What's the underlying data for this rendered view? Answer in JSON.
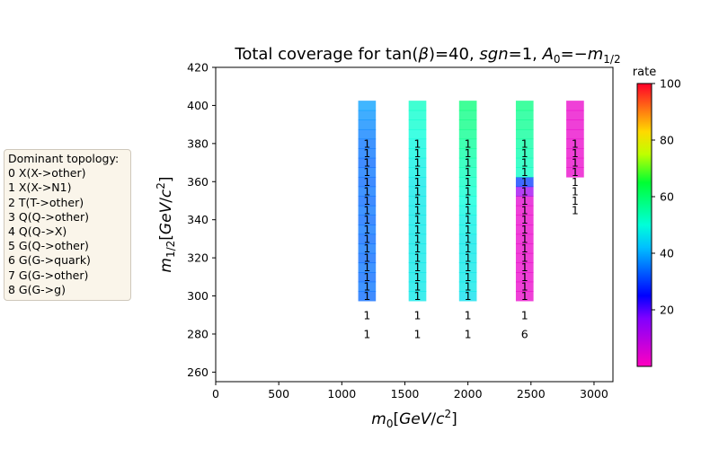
{
  "chart_data": {
    "type": "heatmap",
    "title": "Total coverage for tan(β)=40, sgn=1, A₀=−m₁/₂",
    "xlabel": "m₀[GeV/c²]",
    "ylabel": "m₁/₂[GeV/c²]",
    "xlim": [
      0,
      3150
    ],
    "ylim": [
      255,
      420
    ],
    "x_ticks": [
      0,
      500,
      1000,
      1500,
      2000,
      2500,
      3000
    ],
    "y_ticks": [
      260,
      280,
      300,
      320,
      340,
      360,
      380,
      400,
      420
    ],
    "grid": false,
    "colorbar": {
      "label": "rate",
      "range": [
        0,
        100
      ],
      "ticks": [
        20,
        40,
        60,
        80,
        100
      ],
      "colormap": "gist_rainbow_r"
    },
    "cell_width": 140,
    "cell_height": 5,
    "columns": [
      {
        "x": 1200,
        "cells": [
          {
            "y": 300,
            "rate": 34
          },
          {
            "y": 305,
            "rate": 35
          },
          {
            "y": 310,
            "rate": 34
          },
          {
            "y": 315,
            "rate": 35
          },
          {
            "y": 320,
            "rate": 34
          },
          {
            "y": 325,
            "rate": 35
          },
          {
            "y": 330,
            "rate": 34
          },
          {
            "y": 335,
            "rate": 35
          },
          {
            "y": 340,
            "rate": 34
          },
          {
            "y": 345,
            "rate": 35
          },
          {
            "y": 350,
            "rate": 34
          },
          {
            "y": 355,
            "rate": 35
          },
          {
            "y": 360,
            "rate": 34
          },
          {
            "y": 365,
            "rate": 35
          },
          {
            "y": 370,
            "rate": 34
          },
          {
            "y": 375,
            "rate": 35
          },
          {
            "y": 380,
            "rate": 35
          },
          {
            "y": 385,
            "rate": 36
          },
          {
            "y": 390,
            "rate": 37
          },
          {
            "y": 395,
            "rate": 38
          },
          {
            "y": 400,
            "rate": 39
          }
        ]
      },
      {
        "x": 1600,
        "cells": [
          {
            "y": 300,
            "rate": 47
          },
          {
            "y": 305,
            "rate": 47
          },
          {
            "y": 310,
            "rate": 47
          },
          {
            "y": 315,
            "rate": 47
          },
          {
            "y": 320,
            "rate": 47
          },
          {
            "y": 325,
            "rate": 47
          },
          {
            "y": 330,
            "rate": 47
          },
          {
            "y": 335,
            "rate": 47
          },
          {
            "y": 340,
            "rate": 47
          },
          {
            "y": 345,
            "rate": 47
          },
          {
            "y": 350,
            "rate": 47
          },
          {
            "y": 355,
            "rate": 47
          },
          {
            "y": 360,
            "rate": 47
          },
          {
            "y": 365,
            "rate": 48
          },
          {
            "y": 370,
            "rate": 48
          },
          {
            "y": 375,
            "rate": 49
          },
          {
            "y": 380,
            "rate": 49
          },
          {
            "y": 385,
            "rate": 50
          },
          {
            "y": 390,
            "rate": 51
          },
          {
            "y": 395,
            "rate": 51
          },
          {
            "y": 400,
            "rate": 52
          }
        ]
      },
      {
        "x": 2000,
        "cells": [
          {
            "y": 300,
            "rate": 46
          },
          {
            "y": 305,
            "rate": 47
          },
          {
            "y": 310,
            "rate": 47
          },
          {
            "y": 315,
            "rate": 47
          },
          {
            "y": 320,
            "rate": 47
          },
          {
            "y": 325,
            "rate": 47
          },
          {
            "y": 330,
            "rate": 47
          },
          {
            "y": 335,
            "rate": 48
          },
          {
            "y": 340,
            "rate": 48
          },
          {
            "y": 345,
            "rate": 49
          },
          {
            "y": 350,
            "rate": 50
          },
          {
            "y": 355,
            "rate": 51
          },
          {
            "y": 360,
            "rate": 52
          },
          {
            "y": 365,
            "rate": 53
          },
          {
            "y": 370,
            "rate": 54
          },
          {
            "y": 375,
            "rate": 55
          },
          {
            "y": 380,
            "rate": 56
          },
          {
            "y": 385,
            "rate": 57
          },
          {
            "y": 390,
            "rate": 58
          },
          {
            "y": 395,
            "rate": 58
          },
          {
            "y": 400,
            "rate": 59
          }
        ]
      },
      {
        "x": 2450,
        "cells": [
          {
            "y": 300,
            "rate": 3
          },
          {
            "y": 305,
            "rate": 3
          },
          {
            "y": 310,
            "rate": 3
          },
          {
            "y": 315,
            "rate": 3
          },
          {
            "y": 320,
            "rate": 3
          },
          {
            "y": 325,
            "rate": 3
          },
          {
            "y": 330,
            "rate": 3
          },
          {
            "y": 335,
            "rate": 3
          },
          {
            "y": 340,
            "rate": 3
          },
          {
            "y": 345,
            "rate": 3
          },
          {
            "y": 350,
            "rate": 4
          },
          {
            "y": 355,
            "rate": 13
          },
          {
            "y": 360,
            "rate": 30
          },
          {
            "y": 365,
            "rate": 52
          },
          {
            "y": 370,
            "rate": 53
          },
          {
            "y": 375,
            "rate": 54
          },
          {
            "y": 380,
            "rate": 55
          },
          {
            "y": 385,
            "rate": 56
          },
          {
            "y": 390,
            "rate": 57
          },
          {
            "y": 395,
            "rate": 57
          },
          {
            "y": 400,
            "rate": 58
          }
        ]
      },
      {
        "x": 2850,
        "cells": [
          {
            "y": 365,
            "rate": 3
          },
          {
            "y": 370,
            "rate": 3
          },
          {
            "y": 375,
            "rate": 3
          },
          {
            "y": 380,
            "rate": 3
          },
          {
            "y": 385,
            "rate": 3
          },
          {
            "y": 390,
            "rate": 3
          },
          {
            "y": 395,
            "rate": 3
          },
          {
            "y": 400,
            "rate": 3
          }
        ]
      }
    ],
    "labels": [
      {
        "x": 1200,
        "ys": [
          280,
          290,
          300,
          305,
          310,
          315,
          320,
          325,
          330,
          335,
          340,
          345,
          350,
          355,
          360,
          365,
          370,
          375,
          380
        ],
        "texts": [
          "1",
          "1",
          "1",
          "1",
          "1",
          "1",
          "1",
          "1",
          "1",
          "1",
          "1",
          "1",
          "1",
          "1",
          "1",
          "1",
          "1",
          "1",
          "1"
        ]
      },
      {
        "x": 1600,
        "ys": [
          280,
          290,
          300,
          305,
          310,
          315,
          320,
          325,
          330,
          335,
          340,
          345,
          350,
          355,
          360,
          365,
          370,
          375,
          380
        ],
        "texts": [
          "1",
          "1",
          "1",
          "1",
          "1",
          "1",
          "1",
          "1",
          "1",
          "1",
          "1",
          "1",
          "1",
          "1",
          "1",
          "1",
          "1",
          "1",
          "1"
        ]
      },
      {
        "x": 2000,
        "ys": [
          280,
          290,
          300,
          305,
          310,
          315,
          320,
          325,
          330,
          335,
          340,
          345,
          350,
          355,
          360,
          365,
          370,
          375,
          380
        ],
        "texts": [
          "1",
          "1",
          "1",
          "1",
          "1",
          "1",
          "1",
          "1",
          "1",
          "1",
          "1",
          "1",
          "1",
          "1",
          "1",
          "1",
          "1",
          "1",
          "1"
        ]
      },
      {
        "x": 2450,
        "ys": [
          280,
          290,
          300,
          305,
          310,
          315,
          320,
          325,
          330,
          335,
          340,
          345,
          350,
          355,
          360,
          365,
          370,
          375,
          380
        ],
        "texts": [
          "6",
          "1",
          "1",
          "1",
          "1",
          "1",
          "1",
          "1",
          "1",
          "1",
          "1",
          "1",
          "1",
          "1",
          "1",
          "1",
          "1",
          "1",
          "1"
        ]
      },
      {
        "x": 2850,
        "ys": [
          345,
          350,
          355,
          360,
          365,
          370,
          375,
          380
        ],
        "texts": [
          "1",
          "1",
          "1",
          "1",
          "1",
          "1",
          "1",
          "1"
        ]
      }
    ]
  },
  "legend": {
    "title": "Dominant topology:",
    "items": [
      "0 X(X->other)",
      "1 X(X->N1)",
      "2 T(T->other)",
      "3 Q(Q->other)",
      "4 Q(Q->X)",
      "5 G(Q->other)",
      "6 G(G->quark)",
      "7 G(G->other)",
      "8 G(G->g)"
    ]
  }
}
